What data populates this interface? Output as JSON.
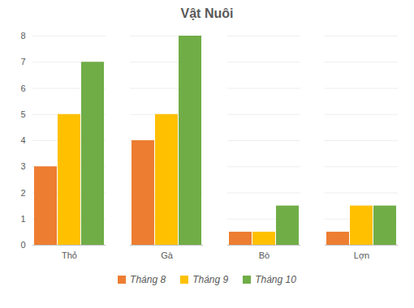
{
  "chart_data": {
    "type": "bar",
    "title": "Vật Nuôi",
    "categories": [
      "Thỏ",
      "Gà",
      "Bò",
      "Lợn"
    ],
    "series": [
      {
        "name": "Tháng 8",
        "color": "#ED7D31",
        "values": [
          3,
          4,
          0.5,
          0.5
        ]
      },
      {
        "name": "Tháng 9",
        "color": "#FFC000",
        "values": [
          5,
          5,
          0.5,
          1.5
        ]
      },
      {
        "name": "Tháng 10",
        "color": "#70AD47",
        "values": [
          7,
          8,
          1.5,
          1.5
        ]
      }
    ],
    "ylim": [
      0,
      8
    ],
    "yticks": [
      0,
      1,
      2,
      3,
      4,
      5,
      6,
      7,
      8
    ],
    "grid": true,
    "legend": "bottom"
  }
}
